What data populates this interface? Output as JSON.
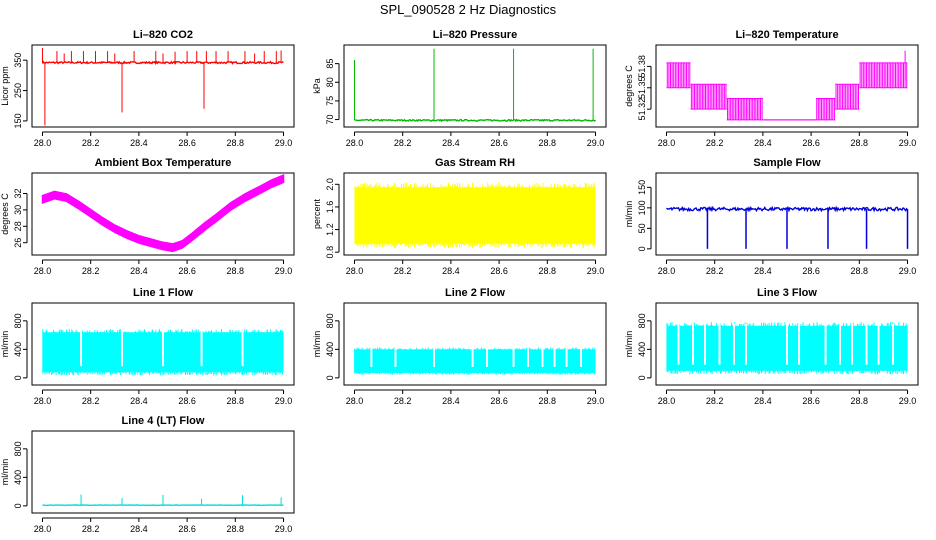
{
  "figure_title": "SPL_090528  2 Hz Diagnostics",
  "chart_data": [
    {
      "id": "co2",
      "type": "line",
      "title": "Li–820 CO2",
      "xlabel": "",
      "ylabel": "Licor ppm",
      "color": "#ff0000",
      "xlim": [
        28.0,
        29.0
      ],
      "ylim": [
        130,
        400
      ],
      "xticks": [
        "28.0",
        "28.2",
        "28.4",
        "28.6",
        "28.8",
        "29.0"
      ],
      "yticks": [
        "150",
        "250",
        "350"
      ],
      "series": [
        {
          "baseline": 342,
          "noise": 3,
          "spikes": [
            [
              28.0,
              390
            ],
            [
              28.01,
              135
            ],
            [
              28.06,
              380
            ],
            [
              28.09,
              372
            ],
            [
              28.12,
              380
            ],
            [
              28.17,
              380
            ],
            [
              28.22,
              380
            ],
            [
              28.27,
              380
            ],
            [
              28.3,
              372
            ],
            [
              28.33,
              178
            ],
            [
              28.38,
              380
            ],
            [
              28.47,
              380
            ],
            [
              28.5,
              372
            ],
            [
              28.55,
              378
            ],
            [
              28.6,
              380
            ],
            [
              28.64,
              380
            ],
            [
              28.67,
              190
            ],
            [
              28.68,
              380
            ],
            [
              28.72,
              380
            ],
            [
              28.77,
              380
            ],
            [
              28.84,
              380
            ],
            [
              28.88,
              372
            ],
            [
              28.92,
              380
            ],
            [
              28.97,
              380
            ],
            [
              28.99,
              382
            ]
          ]
        }
      ]
    },
    {
      "id": "pressure",
      "type": "line",
      "title": "Li–820 Pressure",
      "xlabel": "",
      "ylabel": "kPa",
      "color": "#00bb00",
      "xlim": [
        28.0,
        29.0
      ],
      "ylim": [
        68,
        90
      ],
      "xticks": [
        "28.0",
        "28.2",
        "28.4",
        "28.6",
        "28.8",
        "29.0"
      ],
      "yticks": [
        "70",
        "75",
        "80",
        "85"
      ],
      "series": [
        {
          "baseline": 69.8,
          "noise": 0.2,
          "spikes": [
            [
              28.0,
              86
            ],
            [
              28.33,
              89
            ],
            [
              28.66,
              89
            ],
            [
              28.99,
              89
            ]
          ]
        }
      ]
    },
    {
      "id": "temperature",
      "type": "line",
      "title": "Li–820 Temperature",
      "xlabel": "",
      "ylabel": "degrees C",
      "color": "#ff00ff",
      "xlim": [
        28.0,
        29.0
      ],
      "ylim": [
        51.295,
        51.41
      ],
      "xticks": [
        "28.0",
        "28.2",
        "28.4",
        "28.6",
        "28.8",
        "29.0"
      ],
      "yticks": [
        "51.32",
        "51.35",
        "51.38"
      ],
      "series": [
        {
          "steps": [
            [
              28.0,
              28.1,
              51.35,
              51.385
            ],
            [
              28.1,
              28.25,
              51.32,
              51.355
            ],
            [
              28.25,
              28.4,
              51.305,
              51.335
            ],
            [
              28.4,
              28.62,
              51.305,
              51.305
            ],
            [
              28.62,
              28.7,
              51.305,
              51.335
            ],
            [
              28.7,
              28.8,
              51.32,
              51.355
            ],
            [
              28.8,
              29.0,
              51.35,
              51.385
            ]
          ]
        }
      ]
    },
    {
      "id": "ambient",
      "type": "line",
      "title": "Ambient Box Temperature",
      "xlabel": "",
      "ylabel": "degrees C",
      "color": "#ff00ff",
      "xlim": [
        28.0,
        29.0
      ],
      "ylim": [
        24.5,
        34.5
      ],
      "xticks": [
        "28.0",
        "28.2",
        "28.4",
        "28.6",
        "28.8",
        "29.0"
      ],
      "yticks": [
        "26",
        "28",
        "30",
        "32"
      ],
      "series": [
        {
          "points": [
            [
              28.0,
              31.3
            ],
            [
              28.05,
              31.8
            ],
            [
              28.1,
              31.5
            ],
            [
              28.15,
              30.6
            ],
            [
              28.2,
              29.6
            ],
            [
              28.25,
              28.6
            ],
            [
              28.3,
              27.7
            ],
            [
              28.35,
              27.0
            ],
            [
              28.4,
              26.4
            ],
            [
              28.45,
              26.0
            ],
            [
              28.5,
              25.6
            ],
            [
              28.54,
              25.4
            ],
            [
              28.58,
              25.8
            ],
            [
              28.62,
              26.7
            ],
            [
              28.67,
              27.9
            ],
            [
              28.72,
              29.0
            ],
            [
              28.78,
              30.4
            ],
            [
              28.84,
              31.5
            ],
            [
              28.9,
              32.4
            ],
            [
              28.95,
              33.2
            ],
            [
              29.0,
              33.8
            ]
          ],
          "band": 0.45
        }
      ]
    },
    {
      "id": "rh",
      "type": "area",
      "title": "Gas Stream RH",
      "xlabel": "",
      "ylabel": "percent",
      "color": "#ffff00",
      "xlim": [
        28.0,
        29.0
      ],
      "ylim": [
        0.75,
        2.2
      ],
      "xticks": [
        "28.0",
        "28.2",
        "28.4",
        "28.6",
        "28.8",
        "29.0"
      ],
      "yticks": [
        "0.8",
        "1.2",
        "1.6",
        "2.0"
      ],
      "series": [
        {
          "low": 0.95,
          "high": 1.95
        }
      ]
    },
    {
      "id": "sample",
      "type": "line",
      "title": "Sample Flow",
      "xlabel": "",
      "ylabel": "ml/min",
      "color": "#0000dd",
      "xlim": [
        28.0,
        29.0
      ],
      "ylim": [
        -15,
        185
      ],
      "xticks": [
        "28.0",
        "28.2",
        "28.4",
        "28.6",
        "28.8",
        "29.0"
      ],
      "yticks": [
        "0",
        "50",
        "100",
        "150"
      ],
      "series": [
        {
          "baseline": 97,
          "noise": 4,
          "dips": [
            28.17,
            28.33,
            28.5,
            28.67,
            28.83,
            29.0
          ]
        }
      ]
    },
    {
      "id": "line1",
      "type": "area",
      "title": "Line 1 Flow",
      "xlabel": "",
      "ylabel": "ml/min",
      "color": "#00ffff",
      "xlim": [
        28.0,
        29.0
      ],
      "ylim": [
        -100,
        1050
      ],
      "xticks": [
        "28.0",
        "28.2",
        "28.4",
        "28.6",
        "28.8",
        "29.0"
      ],
      "yticks": [
        "0",
        "400",
        "800"
      ],
      "series": [
        {
          "low": 80,
          "high": 640,
          "gaps": [
            28.16,
            28.33,
            28.5,
            28.66,
            28.83
          ]
        }
      ]
    },
    {
      "id": "line2",
      "type": "area",
      "title": "Line 2 Flow",
      "xlabel": "",
      "ylabel": "ml/min",
      "color": "#00ffff",
      "xlim": [
        28.0,
        29.0
      ],
      "ylim": [
        -100,
        1050
      ],
      "xticks": [
        "28.0",
        "28.2",
        "28.4",
        "28.6",
        "28.8",
        "29.0"
      ],
      "yticks": [
        "0",
        "400",
        "800"
      ],
      "series": [
        {
          "low": 70,
          "high": 400,
          "gaps": [
            28.07,
            28.17,
            28.33,
            28.49,
            28.55,
            28.66,
            28.72,
            28.78,
            28.83,
            28.88,
            28.94
          ]
        }
      ]
    },
    {
      "id": "line3",
      "type": "area",
      "title": "Line 3 Flow",
      "xlabel": "",
      "ylabel": "ml/min",
      "color": "#00ffff",
      "xlim": [
        28.0,
        29.0
      ],
      "ylim": [
        -100,
        1050
      ],
      "xticks": [
        "28.0",
        "28.2",
        "28.4",
        "28.6",
        "28.8",
        "29.0"
      ],
      "yticks": [
        "0",
        "400",
        "800"
      ],
      "series": [
        {
          "low": 100,
          "high": 730,
          "gaps": [
            28.05,
            28.11,
            28.16,
            28.22,
            28.28,
            28.33,
            28.5,
            28.55,
            28.66,
            28.72,
            28.77,
            28.83,
            28.88,
            28.94
          ]
        }
      ]
    },
    {
      "id": "line4",
      "type": "line",
      "title": "Line 4 (LT) Flow",
      "xlabel": "",
      "ylabel": "ml/min",
      "color": "#00dddd",
      "xlim": [
        28.0,
        29.0
      ],
      "ylim": [
        -100,
        1050
      ],
      "xticks": [
        "28.0",
        "28.2",
        "28.4",
        "28.6",
        "28.8",
        "29.0"
      ],
      "yticks": [
        "0",
        "400",
        "800"
      ],
      "series": [
        {
          "baseline": 10,
          "noise": 3,
          "spikes": [
            [
              28.16,
              160
            ],
            [
              28.33,
              110
            ],
            [
              28.5,
              155
            ],
            [
              28.66,
              100
            ],
            [
              28.83,
              150
            ],
            [
              28.99,
              120
            ]
          ]
        }
      ]
    }
  ]
}
